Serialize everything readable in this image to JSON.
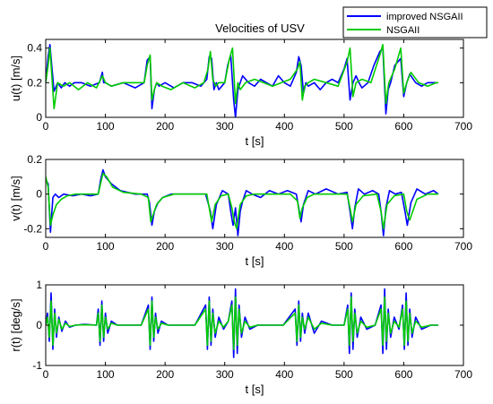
{
  "chart_data": [
    {
      "type": "line",
      "title": "Velocities of USV",
      "xlabel": "t [s]",
      "ylabel": "u(t) [m/s]",
      "xlim": [
        0,
        700
      ],
      "ylim": [
        0,
        0.45
      ],
      "xticks": [
        "0",
        "100",
        "200",
        "300",
        "400",
        "500",
        "600",
        "700"
      ],
      "yticks": [
        "0",
        "0.2",
        "0.4"
      ],
      "grid": false,
      "legend": "top-right",
      "series": [
        {
          "name": "improved NSGAII",
          "color": "#0000ff",
          "x": [
            0,
            4,
            7,
            10,
            14,
            20,
            26,
            32,
            40,
            48,
            60,
            75,
            90,
            95,
            97,
            100,
            110,
            130,
            150,
            165,
            170,
            175,
            178,
            182,
            186,
            190,
            200,
            215,
            230,
            245,
            260,
            270,
            274,
            278,
            282,
            286,
            290,
            300,
            305,
            310,
            315,
            318,
            322,
            326,
            330,
            340,
            350,
            360,
            370,
            380,
            390,
            400,
            410,
            420,
            424,
            428,
            432,
            436,
            440,
            450,
            460,
            470,
            480,
            490,
            500,
            505,
            510,
            515,
            520,
            525,
            530,
            540,
            550,
            560,
            565,
            570,
            574,
            578,
            585,
            595,
            600,
            605,
            610,
            620,
            630,
            640,
            650,
            658
          ],
          "values": [
            0.2,
            0.35,
            0.42,
            0.3,
            0.15,
            0.2,
            0.17,
            0.2,
            0.18,
            0.2,
            0.2,
            0.18,
            0.2,
            0.26,
            0.2,
            0.2,
            0.18,
            0.2,
            0.17,
            0.2,
            0.33,
            0.35,
            0.05,
            0.16,
            0.2,
            0.18,
            0.2,
            0.17,
            0.2,
            0.2,
            0.18,
            0.22,
            0.35,
            0.34,
            0.16,
            0.2,
            0.16,
            0.2,
            0.3,
            0.36,
            0.1,
            0.0,
            0.16,
            0.2,
            0.24,
            0.2,
            0.18,
            0.22,
            0.2,
            0.18,
            0.24,
            0.2,
            0.18,
            0.26,
            0.35,
            0.3,
            0.14,
            0.2,
            0.18,
            0.2,
            0.16,
            0.2,
            0.22,
            0.2,
            0.28,
            0.34,
            0.1,
            0.2,
            0.24,
            0.2,
            0.17,
            0.2,
            0.3,
            0.38,
            0.4,
            0.02,
            0.16,
            0.2,
            0.3,
            0.34,
            0.12,
            0.2,
            0.25,
            0.2,
            0.18,
            0.2,
            0.2,
            0.2
          ]
        },
        {
          "name": "NSGAII",
          "color": "#00cc00",
          "x": [
            0,
            4,
            7,
            10,
            14,
            20,
            30,
            40,
            55,
            70,
            85,
            95,
            100,
            110,
            130,
            150,
            165,
            170,
            175,
            178,
            182,
            186,
            195,
            210,
            230,
            250,
            265,
            272,
            276,
            280,
            285,
            290,
            300,
            308,
            313,
            318,
            322,
            326,
            335,
            350,
            365,
            380,
            395,
            410,
            422,
            426,
            430,
            434,
            440,
            450,
            470,
            490,
            505,
            510,
            515,
            520,
            530,
            545,
            560,
            565,
            570,
            575,
            585,
            595,
            600,
            605,
            612,
            625,
            640,
            655,
            658
          ],
          "values": [
            0.2,
            0.3,
            0.4,
            0.25,
            0.05,
            0.2,
            0.18,
            0.2,
            0.16,
            0.2,
            0.17,
            0.24,
            0.2,
            0.18,
            0.2,
            0.2,
            0.2,
            0.3,
            0.36,
            0.1,
            0.16,
            0.2,
            0.18,
            0.16,
            0.2,
            0.17,
            0.2,
            0.28,
            0.38,
            0.22,
            0.18,
            0.2,
            0.2,
            0.34,
            0.4,
            0.08,
            0.2,
            0.16,
            0.2,
            0.22,
            0.2,
            0.18,
            0.2,
            0.22,
            0.28,
            0.32,
            0.1,
            0.18,
            0.2,
            0.22,
            0.2,
            0.18,
            0.32,
            0.4,
            0.12,
            0.2,
            0.22,
            0.2,
            0.36,
            0.42,
            0.08,
            0.2,
            0.28,
            0.4,
            0.14,
            0.2,
            0.26,
            0.2,
            0.18,
            0.2,
            0.2
          ]
        }
      ]
    },
    {
      "type": "line",
      "xlabel": "t [s]",
      "ylabel": "v(t) [m/s]",
      "xlim": [
        0,
        700
      ],
      "ylim": [
        -0.25,
        0.2
      ],
      "xticks": [
        "0",
        "100",
        "200",
        "300",
        "400",
        "500",
        "600",
        "700"
      ],
      "yticks": [
        "-0.2",
        "0",
        "0.2"
      ],
      "grid": false,
      "series": [
        {
          "name": "improved NSGAII",
          "color": "#0000ff",
          "x": [
            0,
            4,
            8,
            12,
            16,
            22,
            30,
            45,
            60,
            75,
            88,
            92,
            96,
            100,
            110,
            125,
            150,
            170,
            174,
            178,
            182,
            188,
            196,
            210,
            240,
            268,
            272,
            276,
            280,
            286,
            296,
            306,
            310,
            314,
            318,
            322,
            326,
            330,
            336,
            346,
            360,
            375,
            390,
            405,
            420,
            424,
            428,
            432,
            440,
            452,
            470,
            490,
            505,
            510,
            514,
            518,
            524,
            534,
            548,
            558,
            562,
            566,
            570,
            576,
            586,
            596,
            602,
            606,
            612,
            622,
            636,
            650,
            658
          ],
          "values": [
            0.08,
            0.06,
            -0.22,
            -0.02,
            0.0,
            -0.02,
            0.0,
            -0.01,
            0.0,
            -0.01,
            0.0,
            0.08,
            0.14,
            0.1,
            0.06,
            0.02,
            0.0,
            0.0,
            -0.05,
            -0.18,
            -0.1,
            -0.05,
            -0.02,
            0.0,
            0.0,
            0.0,
            -0.05,
            -0.1,
            -0.2,
            -0.06,
            0.02,
            0.0,
            -0.1,
            -0.18,
            -0.08,
            -0.24,
            -0.1,
            -0.04,
            0.02,
            0.0,
            -0.02,
            0.02,
            0.0,
            0.02,
            0.0,
            -0.08,
            -0.16,
            -0.06,
            0.02,
            0.0,
            0.03,
            0.0,
            0.01,
            -0.1,
            -0.2,
            -0.08,
            0.03,
            0.0,
            0.02,
            0.0,
            -0.1,
            -0.24,
            -0.08,
            0.02,
            0.0,
            0.01,
            -0.1,
            -0.18,
            -0.05,
            0.03,
            0.0,
            0.02,
            0.0
          ]
        },
        {
          "name": "NSGAII",
          "color": "#00cc00",
          "x": [
            0,
            4,
            8,
            12,
            18,
            26,
            36,
            50,
            70,
            88,
            92,
            96,
            102,
            112,
            130,
            160,
            172,
            176,
            180,
            186,
            196,
            215,
            250,
            270,
            274,
            278,
            284,
            294,
            306,
            312,
            316,
            320,
            326,
            336,
            350,
            380,
            410,
            422,
            426,
            430,
            438,
            450,
            480,
            505,
            510,
            514,
            520,
            532,
            555,
            562,
            566,
            572,
            584,
            600,
            605,
            610,
            622,
            640,
            658
          ],
          "values": [
            0.1,
            0.04,
            -0.18,
            -0.12,
            -0.06,
            -0.03,
            -0.01,
            0.0,
            0.0,
            0.0,
            0.06,
            0.12,
            0.1,
            0.04,
            0.01,
            0.0,
            -0.02,
            -0.16,
            -0.12,
            -0.06,
            -0.02,
            0.0,
            0.0,
            0.0,
            -0.08,
            -0.16,
            -0.06,
            -0.01,
            0.0,
            -0.08,
            -0.16,
            -0.2,
            -0.06,
            -0.01,
            0.0,
            0.0,
            0.0,
            -0.04,
            -0.14,
            -0.08,
            -0.02,
            0.0,
            0.0,
            0.0,
            -0.08,
            -0.16,
            -0.06,
            -0.01,
            0.0,
            -0.1,
            -0.2,
            -0.06,
            -0.01,
            0.0,
            -0.1,
            -0.15,
            -0.03,
            0.0,
            0.0
          ]
        }
      ]
    },
    {
      "type": "line",
      "xlabel": "t [s]",
      "ylabel": "r(t) [deg/s]",
      "xlim": [
        0,
        700
      ],
      "ylim": [
        -1,
        1
      ],
      "xticks": [
        "0",
        "100",
        "200",
        "300",
        "400",
        "500",
        "600",
        "700"
      ],
      "yticks": [
        "-1",
        "0",
        "1"
      ],
      "grid": false,
      "series": [
        {
          "name": "improved NSGAII",
          "color": "#0000ff",
          "x": [
            0,
            3,
            6,
            9,
            12,
            15,
            18,
            22,
            27,
            33,
            40,
            50,
            65,
            85,
            88,
            91,
            94,
            97,
            100,
            104,
            110,
            120,
            140,
            160,
            172,
            175,
            178,
            181,
            184,
            188,
            194,
            205,
            225,
            250,
            268,
            271,
            274,
            277,
            280,
            284,
            290,
            298,
            306,
            312,
            315,
            318,
            321,
            324,
            328,
            334,
            342,
            355,
            375,
            398,
            418,
            421,
            424,
            427,
            430,
            434,
            440,
            450,
            462,
            480,
            500,
            506,
            509,
            512,
            515,
            518,
            522,
            528,
            538,
            552,
            562,
            565,
            568,
            571,
            574,
            578,
            584,
            592,
            598,
            601,
            604,
            607,
            610,
            614,
            620,
            630,
            645,
            658
          ],
          "values": [
            0.0,
            0.3,
            -0.4,
            0.8,
            -0.6,
            0.4,
            -0.3,
            0.2,
            -0.15,
            0.1,
            -0.05,
            0.0,
            0.02,
            0.0,
            0.4,
            -0.5,
            0.6,
            -0.4,
            0.3,
            -0.2,
            0.1,
            0.0,
            0.0,
            0.0,
            0.5,
            -0.6,
            0.7,
            -0.4,
            0.3,
            -0.2,
            0.1,
            0.0,
            0.0,
            0.0,
            0.5,
            -0.6,
            0.7,
            -0.5,
            0.4,
            -0.3,
            0.2,
            -0.1,
            0.1,
            0.6,
            -0.8,
            0.9,
            -0.7,
            0.5,
            -0.3,
            0.2,
            -0.1,
            0.0,
            0.0,
            0.0,
            0.4,
            -0.5,
            0.6,
            -0.4,
            0.3,
            -0.2,
            0.3,
            -0.2,
            0.1,
            0.0,
            0.0,
            0.5,
            -0.7,
            0.8,
            -0.6,
            0.4,
            -0.3,
            0.2,
            -0.1,
            0.0,
            0.5,
            -0.7,
            0.9,
            -0.6,
            0.4,
            -0.3,
            0.2,
            -0.1,
            0.5,
            -0.6,
            0.8,
            -0.5,
            0.4,
            -0.3,
            0.2,
            -0.1,
            0.0,
            0.0
          ]
        },
        {
          "name": "NSGAII",
          "color": "#00cc00",
          "x": [
            0,
            3,
            6,
            9,
            12,
            15,
            18,
            22,
            27,
            33,
            40,
            50,
            65,
            85,
            88,
            91,
            94,
            97,
            100,
            104,
            110,
            120,
            140,
            160,
            172,
            175,
            178,
            181,
            184,
            188,
            194,
            205,
            225,
            250,
            268,
            271,
            274,
            277,
            280,
            284,
            290,
            298,
            306,
            312,
            315,
            318,
            321,
            324,
            328,
            334,
            342,
            355,
            375,
            398,
            418,
            421,
            424,
            427,
            430,
            434,
            440,
            450,
            462,
            480,
            500,
            506,
            509,
            512,
            515,
            518,
            522,
            528,
            538,
            552,
            562,
            565,
            568,
            571,
            574,
            578,
            584,
            592,
            598,
            601,
            604,
            607,
            610,
            614,
            620,
            630,
            645,
            658
          ],
          "values": [
            0.0,
            0.2,
            -0.3,
            0.6,
            -0.5,
            0.3,
            -0.2,
            0.15,
            -0.1,
            0.05,
            -0.03,
            0.0,
            0.01,
            0.0,
            0.3,
            -0.4,
            0.5,
            -0.3,
            0.2,
            -0.1,
            0.05,
            0.0,
            0.0,
            0.0,
            0.4,
            -0.5,
            0.6,
            -0.3,
            0.2,
            -0.1,
            0.05,
            0.0,
            0.0,
            0.0,
            0.4,
            -0.5,
            0.6,
            -0.4,
            0.3,
            -0.2,
            0.1,
            -0.05,
            0.1,
            0.5,
            -0.6,
            0.7,
            -0.5,
            0.4,
            -0.2,
            0.1,
            -0.05,
            0.0,
            0.0,
            0.0,
            0.3,
            -0.4,
            0.5,
            -0.3,
            0.2,
            -0.1,
            0.2,
            -0.1,
            0.05,
            0.0,
            0.0,
            0.4,
            -0.5,
            0.7,
            -0.4,
            0.3,
            -0.2,
            0.1,
            -0.05,
            0.0,
            0.4,
            -0.5,
            0.7,
            -0.4,
            0.3,
            -0.2,
            0.1,
            -0.05,
            0.4,
            -0.5,
            0.6,
            -0.4,
            0.3,
            -0.2,
            0.1,
            -0.05,
            0.0,
            0.0
          ]
        }
      ]
    }
  ]
}
